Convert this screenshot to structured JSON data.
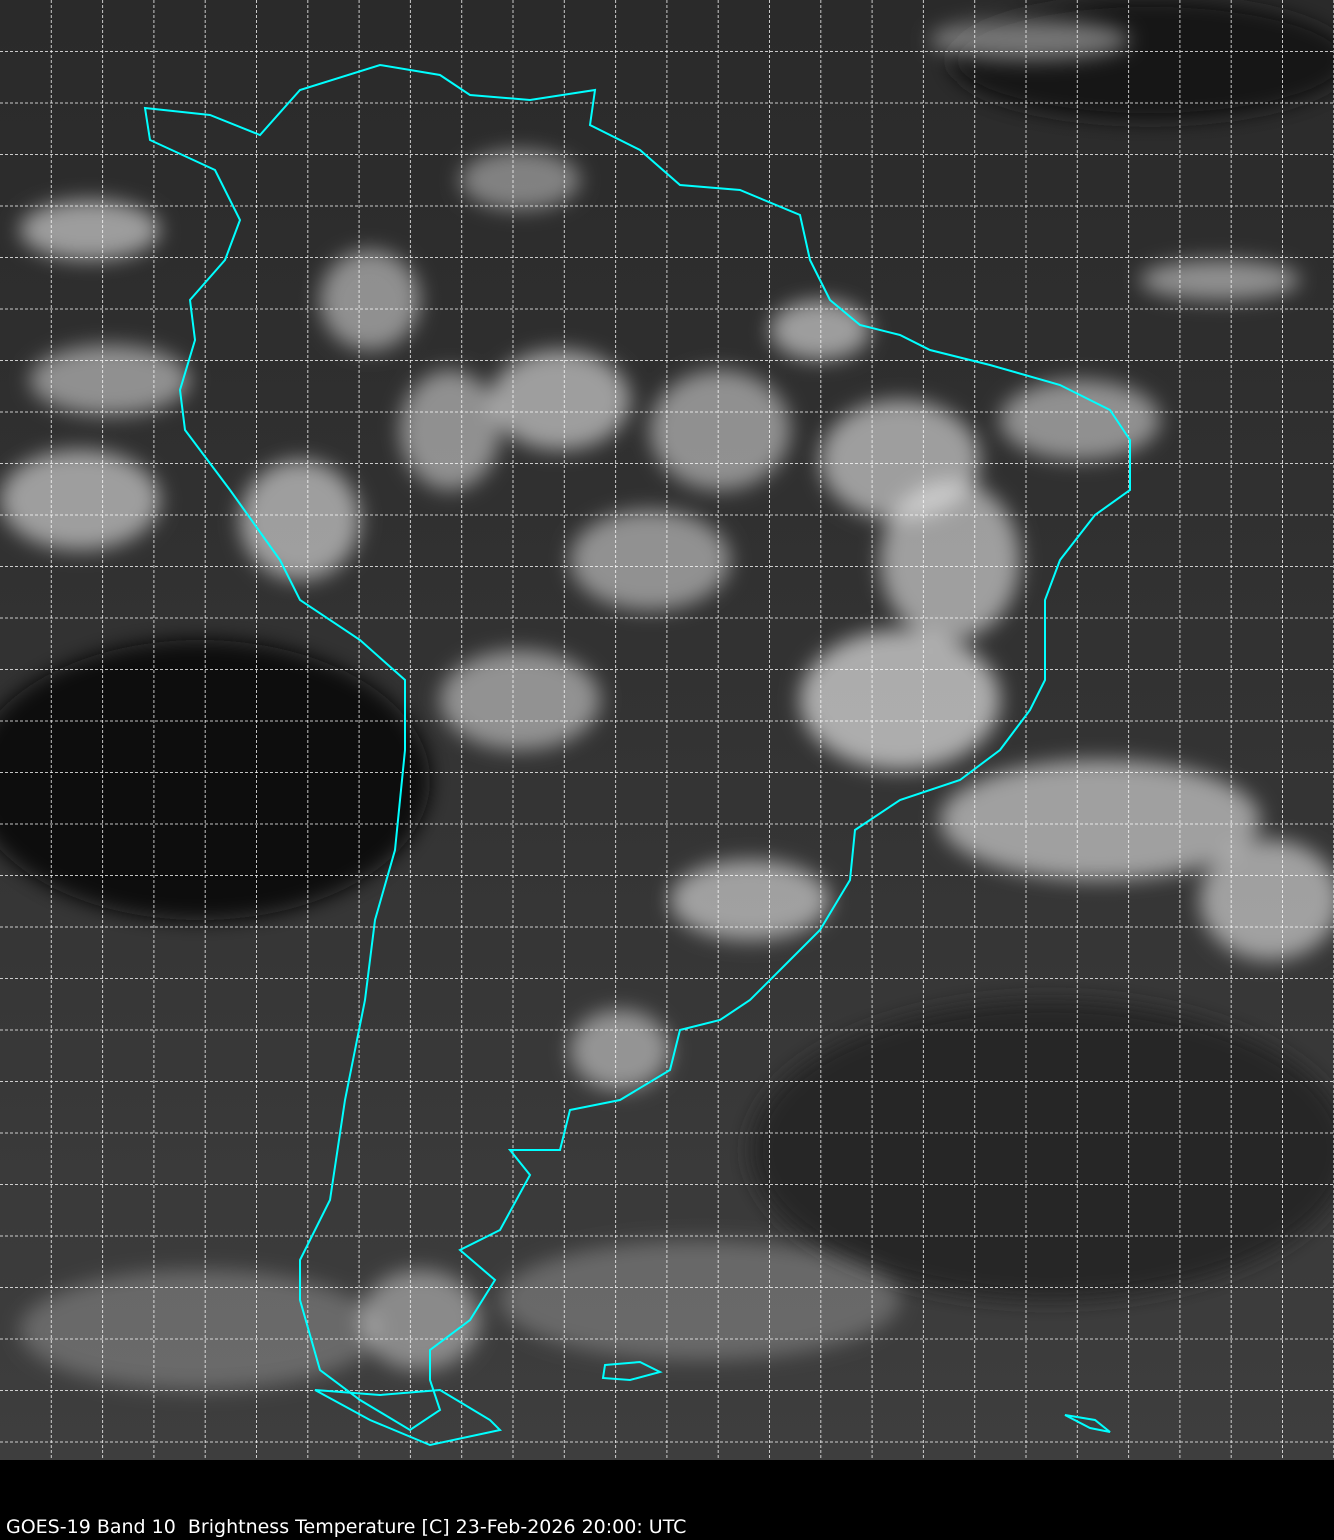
{
  "caption": "GOES-19 Band 10  Brightness Temperature [C] 23-Feb-2026 20:00: UTC",
  "colors": {
    "coastline": "#00ffff",
    "grid": "#ffffff",
    "background_dark": "#1a1a1a",
    "cloud": "#e8e8e8"
  },
  "grid": {
    "style": "dashed",
    "visible": true
  }
}
